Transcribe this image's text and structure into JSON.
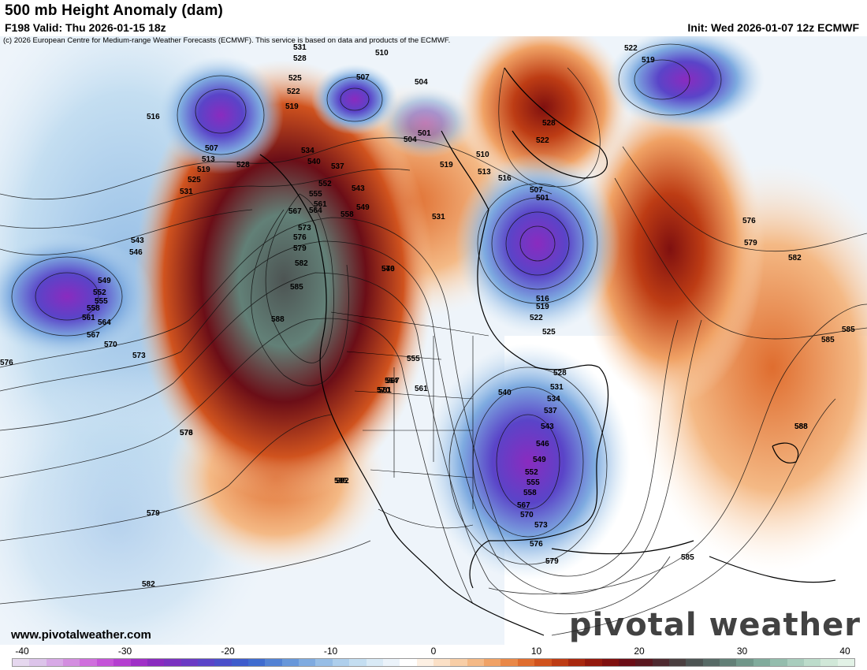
{
  "header": {
    "title": "500 mb Height Anomaly (dam)",
    "valid": "F198 Valid: Thu 2026-01-15 18z",
    "init": "Init: Wed 2026-01-07 12z ECMWF"
  },
  "copyright": "(c) 2026 European Centre for Medium-range Weather Forecasts (ECMWF). This service is based on data and products of the ECMWF.",
  "website": "www.pivotalweather.com",
  "brand": "pivotal weather",
  "contour_labels": [
    "531",
    "528",
    "525",
    "522",
    "519",
    "510",
    "507",
    "504",
    "516",
    "507",
    "513",
    "519",
    "525",
    "528",
    "531",
    "534",
    "540",
    "537",
    "543",
    "549",
    "552",
    "555",
    "558",
    "561",
    "564",
    "567",
    "570",
    "573",
    "576",
    "579",
    "582",
    "585",
    "588",
    "501",
    "507",
    "516",
    "519",
    "522",
    "525",
    "528",
    "531",
    "534",
    "537",
    "540",
    "543",
    "546",
    "549",
    "552",
    "555",
    "558",
    "561",
    "564",
    "567",
    "570",
    "573",
    "576",
    "579",
    "582",
    "585",
    "588",
    "543",
    "546",
    "549",
    "552",
    "555",
    "558",
    "561",
    "564",
    "567",
    "570",
    "573",
    "576",
    "522",
    "519",
    "576",
    "579",
    "582",
    "585",
    "585",
    "573",
    "576",
    "579",
    "582",
    "585",
    "588",
    "504",
    "501",
    "510",
    "513",
    "516",
    "519",
    "522",
    "528",
    "531",
    "555",
    "561",
    "567",
    "570",
    "546"
  ],
  "colorbar": {
    "ticks": [
      "-40",
      "-30",
      "-20",
      "-10",
      "0",
      "10",
      "20",
      "30",
      "40"
    ],
    "colors": [
      "#e6d8ef",
      "#dcc4ea",
      "#d7a9e6",
      "#d38ee0",
      "#cf6fdd",
      "#c453d8",
      "#b43fd0",
      "#9f2fc7",
      "#8a2bbf",
      "#7a32c0",
      "#6a3ac4",
      "#5a44c8",
      "#4a4fca",
      "#3e5ccc",
      "#3f6ccf",
      "#5282d4",
      "#6797da",
      "#7eabe0",
      "#96bee6",
      "#aecfec",
      "#c4def1",
      "#d9eaf6",
      "#ebf3fa",
      "#ffffff",
      "#fdf0e3",
      "#fbe0c6",
      "#f8cea6",
      "#f4b985",
      "#f0a265",
      "#e98847",
      "#df6d2f",
      "#d0531e",
      "#bd3c14",
      "#a8280f",
      "#93190d",
      "#7f100f",
      "#6b0e17",
      "#5a1820",
      "#4e2a30",
      "#4a3f40",
      "#4d5453",
      "#576a66",
      "#628077",
      "#70978a",
      "#80ab9c",
      "#93bdad",
      "#a8cdbd",
      "#bcdccb",
      "#d0e8d8",
      "#e2f2e6"
    ]
  }
}
